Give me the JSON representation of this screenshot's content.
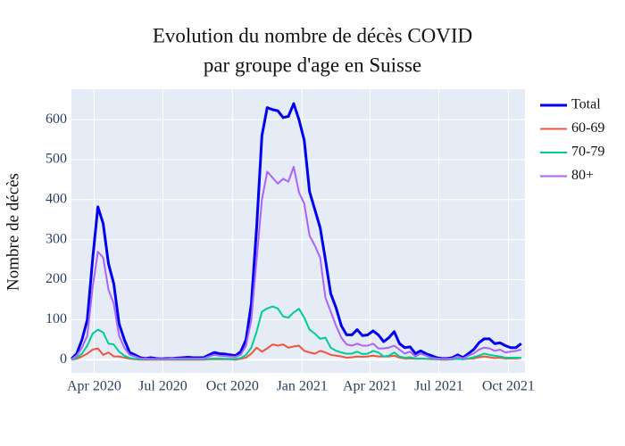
{
  "chart_data": {
    "type": "line",
    "title": [
      "Evolution du nombre de décès COVID",
      "par groupe d'age en Suisse"
    ],
    "y_label": "Nombre de décès",
    "x": [
      "2020-03-02",
      "2020-03-09",
      "2020-03-16",
      "2020-03-23",
      "2020-03-30",
      "2020-04-06",
      "2020-04-13",
      "2020-04-20",
      "2020-04-27",
      "2020-05-04",
      "2020-05-11",
      "2020-05-18",
      "2020-05-25",
      "2020-06-01",
      "2020-06-08",
      "2020-06-15",
      "2020-06-22",
      "2020-06-29",
      "2020-07-06",
      "2020-07-13",
      "2020-07-20",
      "2020-07-27",
      "2020-08-03",
      "2020-08-10",
      "2020-08-17",
      "2020-08-24",
      "2020-08-31",
      "2020-09-07",
      "2020-09-14",
      "2020-09-21",
      "2020-09-28",
      "2020-10-05",
      "2020-10-12",
      "2020-10-19",
      "2020-10-26",
      "2020-11-02",
      "2020-11-09",
      "2020-11-16",
      "2020-11-23",
      "2020-11-30",
      "2020-12-07",
      "2020-12-14",
      "2020-12-21",
      "2020-12-28",
      "2021-01-04",
      "2021-01-11",
      "2021-01-18",
      "2021-01-25",
      "2021-02-01",
      "2021-02-08",
      "2021-02-15",
      "2021-02-22",
      "2021-03-01",
      "2021-03-08",
      "2021-03-15",
      "2021-03-22",
      "2021-03-29",
      "2021-04-05",
      "2021-04-12",
      "2021-04-19",
      "2021-04-26",
      "2021-05-03",
      "2021-05-10",
      "2021-05-17",
      "2021-05-24",
      "2021-05-31",
      "2021-06-07",
      "2021-06-14",
      "2021-06-21",
      "2021-06-28",
      "2021-07-05",
      "2021-07-12",
      "2021-07-19",
      "2021-07-26",
      "2021-08-02",
      "2021-08-09",
      "2021-08-16",
      "2021-08-23",
      "2021-08-30",
      "2021-09-06",
      "2021-09-13",
      "2021-09-20",
      "2021-09-27",
      "2021-10-04",
      "2021-10-11",
      "2021-10-18"
    ],
    "series": [
      {
        "name": "Total",
        "color": "#0000ee",
        "width": 3,
        "values": [
          2,
          15,
          50,
          100,
          250,
          382,
          340,
          240,
          190,
          90,
          50,
          18,
          12,
          5,
          3,
          5,
          3,
          2,
          3,
          3,
          4,
          5,
          6,
          5,
          5,
          5,
          12,
          18,
          15,
          14,
          12,
          10,
          20,
          50,
          140,
          330,
          560,
          630,
          625,
          622,
          605,
          608,
          640,
          600,
          548,
          420,
          375,
          330,
          250,
          165,
          130,
          85,
          62,
          62,
          75,
          60,
          62,
          72,
          62,
          45,
          55,
          70,
          40,
          30,
          32,
          15,
          22,
          15,
          10,
          5,
          3,
          3,
          5,
          12,
          5,
          15,
          25,
          42,
          52,
          52,
          40,
          42,
          35,
          30,
          30,
          40
        ]
      },
      {
        "name": "60-69",
        "color": "#ef553b",
        "width": 2,
        "values": [
          0,
          2,
          8,
          15,
          25,
          28,
          12,
          18,
          8,
          8,
          5,
          2,
          1,
          0,
          0,
          0,
          0,
          0,
          0,
          0,
          0,
          0,
          0,
          0,
          0,
          0,
          1,
          1,
          1,
          1,
          1,
          0,
          2,
          5,
          15,
          30,
          20,
          28,
          38,
          35,
          38,
          30,
          33,
          35,
          22,
          18,
          15,
          22,
          18,
          12,
          10,
          8,
          5,
          6,
          8,
          7,
          8,
          10,
          8,
          8,
          8,
          10,
          5,
          3,
          3,
          2,
          2,
          2,
          1,
          1,
          0,
          0,
          1,
          2,
          1,
          2,
          3,
          6,
          8,
          6,
          4,
          5,
          3,
          3,
          3,
          4
        ]
      },
      {
        "name": "70-79",
        "color": "#00cc96",
        "width": 2,
        "values": [
          0,
          5,
          15,
          35,
          65,
          75,
          68,
          40,
          38,
          20,
          10,
          4,
          2,
          1,
          1,
          1,
          1,
          1,
          1,
          1,
          1,
          1,
          1,
          1,
          1,
          1,
          2,
          3,
          3,
          2,
          2,
          2,
          4,
          12,
          30,
          70,
          120,
          128,
          133,
          128,
          108,
          105,
          118,
          127,
          105,
          75,
          65,
          52,
          55,
          30,
          22,
          18,
          15,
          15,
          20,
          14,
          15,
          22,
          18,
          8,
          10,
          18,
          8,
          5,
          6,
          3,
          3,
          2,
          2,
          1,
          1,
          1,
          1,
          2,
          1,
          3,
          6,
          10,
          15,
          12,
          10,
          8,
          5,
          5,
          5,
          5
        ]
      },
      {
        "name": "80+",
        "color": "#ab63fa",
        "width": 2,
        "values": [
          1,
          10,
          30,
          60,
          180,
          270,
          255,
          175,
          140,
          60,
          30,
          12,
          8,
          3,
          3,
          2,
          2,
          2,
          2,
          3,
          3,
          3,
          3,
          3,
          3,
          3,
          8,
          12,
          10,
          9,
          8,
          7,
          12,
          35,
          100,
          250,
          400,
          470,
          455,
          440,
          452,
          445,
          482,
          418,
          390,
          310,
          285,
          255,
          155,
          120,
          85,
          55,
          38,
          35,
          40,
          35,
          35,
          40,
          28,
          28,
          30,
          35,
          25,
          15,
          20,
          8,
          15,
          10,
          5,
          3,
          2,
          2,
          3,
          8,
          3,
          10,
          15,
          25,
          30,
          28,
          22,
          25,
          18,
          20,
          22,
          25
        ]
      }
    ],
    "xlim": [
      "2020-03-02",
      "2021-10-23"
    ],
    "xticks": [
      {
        "value": "2020-04-01",
        "label": "Apr 2020"
      },
      {
        "value": "2020-07-01",
        "label": "Jul 2020"
      },
      {
        "value": "2020-10-01",
        "label": "Oct 2020"
      },
      {
        "value": "2021-01-01",
        "label": "Jan 2021"
      },
      {
        "value": "2021-04-01",
        "label": "Apr 2021"
      },
      {
        "value": "2021-07-01",
        "label": "Jul 2021"
      },
      {
        "value": "2021-10-01",
        "label": "Oct 2021"
      }
    ],
    "ylim": [
      -33,
      676
    ],
    "yticks": [
      0,
      100,
      200,
      300,
      400,
      500,
      600
    ],
    "grid": true,
    "legend": "right",
    "background": "#e5ecf6"
  }
}
